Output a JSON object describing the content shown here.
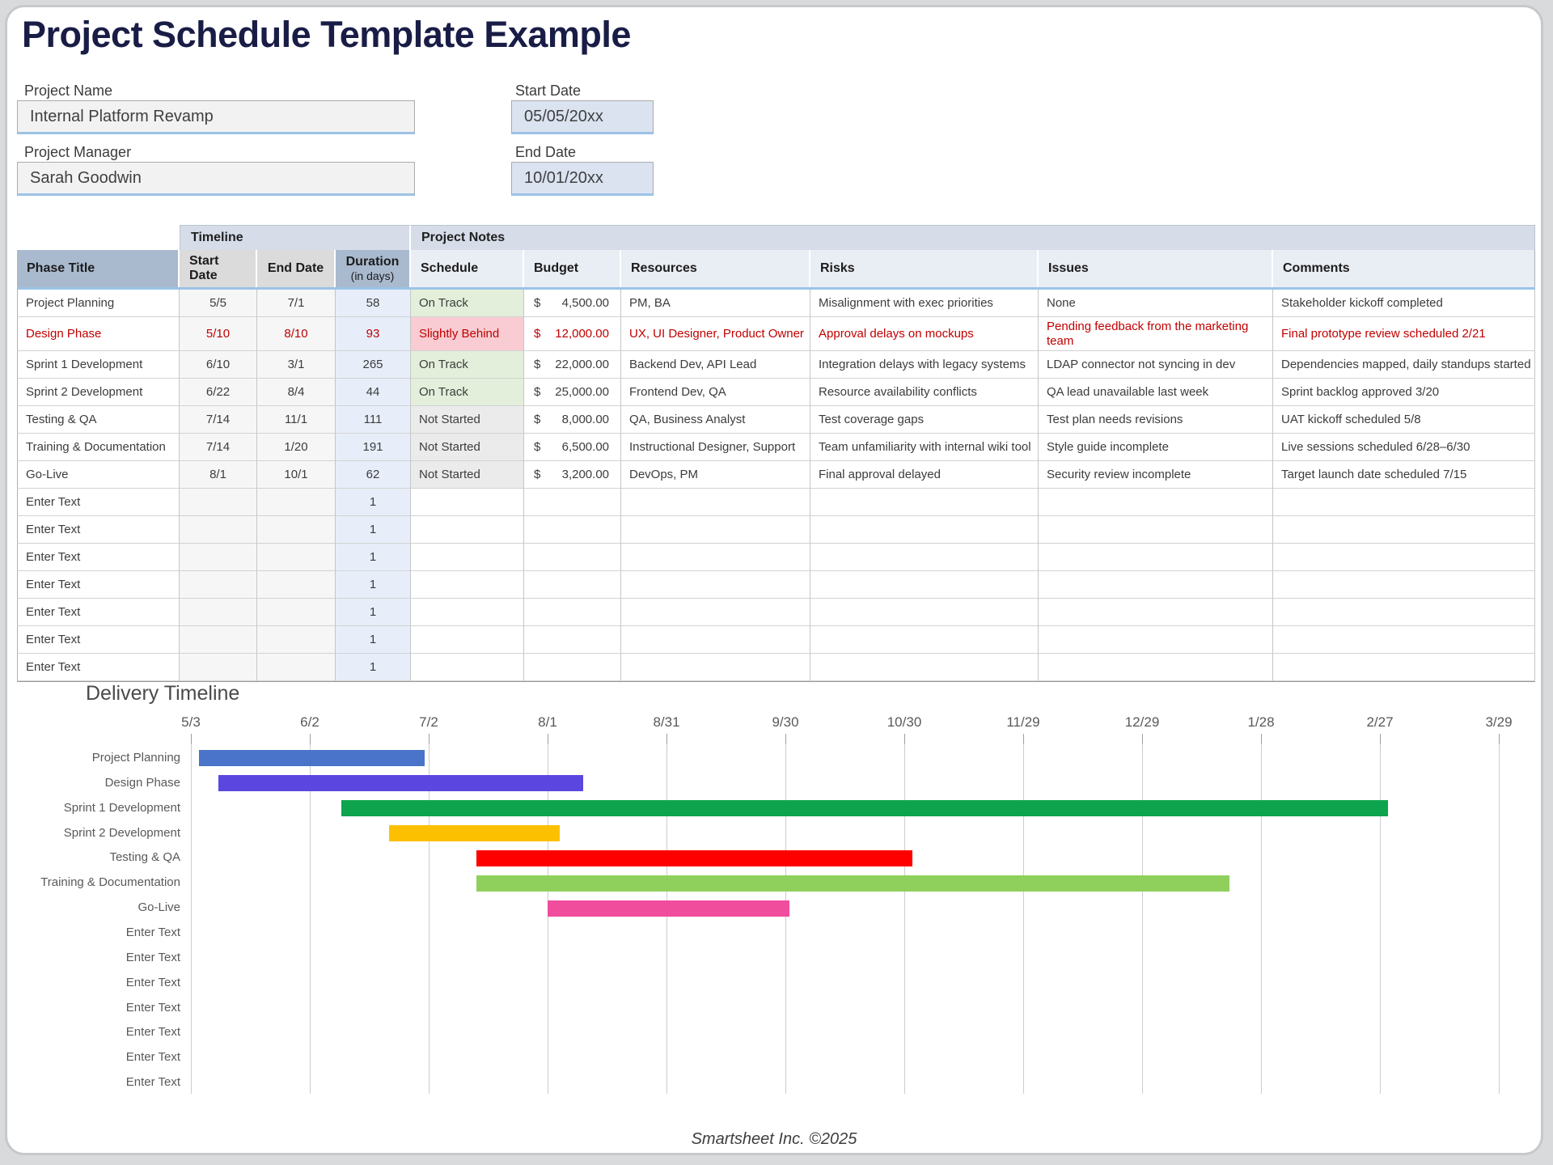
{
  "page": {
    "title": "Project Schedule Template Example",
    "footer": "Smartsheet Inc. ©2025"
  },
  "form": {
    "project_name": {
      "label": "Project Name",
      "value": "Internal Platform Revamp"
    },
    "project_manager": {
      "label": "Project Manager",
      "value": "Sarah Goodwin"
    },
    "start_date": {
      "label": "Start Date",
      "value": "05/05/20xx"
    },
    "end_date": {
      "label": "End Date",
      "value": "10/01/20xx"
    }
  },
  "table": {
    "group_headers": {
      "timeline": "Timeline",
      "project_notes": "Project Notes"
    },
    "columns": {
      "phase": "Phase Title",
      "start": "Start Date",
      "end": "End Date",
      "duration": "Duration",
      "duration_sub": "(in days)",
      "schedule": "Schedule",
      "budget": "Budget",
      "resources": "Resources",
      "risks": "Risks",
      "issues": "Issues",
      "comments": "Comments"
    },
    "currency_symbol": "$",
    "rows": [
      {
        "phase": "Project Planning",
        "start": "5/5",
        "end": "7/1",
        "duration": "58",
        "schedule": "On Track",
        "budget": "4,500.00",
        "resources": "PM, BA",
        "risks": "Misalignment with exec priorities",
        "issues": "None",
        "comments": "Stakeholder kickoff completed",
        "alert": false
      },
      {
        "phase": "Design Phase",
        "start": "5/10",
        "end": "8/10",
        "duration": "93",
        "schedule": "Slightly Behind",
        "budget": "12,000.00",
        "resources": "UX, UI Designer, Product Owner",
        "risks": "Approval delays on mockups",
        "issues": "Pending feedback from the marketing team",
        "comments": "Final prototype review scheduled 2/21",
        "alert": true
      },
      {
        "phase": "Sprint 1 Development",
        "start": "6/10",
        "end": "3/1",
        "duration": "265",
        "schedule": "On Track",
        "budget": "22,000.00",
        "resources": "Backend Dev, API Lead",
        "risks": "Integration delays with legacy systems",
        "issues": "LDAP connector not syncing in dev",
        "comments": "Dependencies mapped, daily standups started",
        "alert": false
      },
      {
        "phase": "Sprint 2 Development",
        "start": "6/22",
        "end": "8/4",
        "duration": "44",
        "schedule": "On Track",
        "budget": "25,000.00",
        "resources": "Frontend Dev, QA",
        "risks": "Resource availability conflicts",
        "issues": "QA lead unavailable last week",
        "comments": "Sprint backlog approved 3/20",
        "alert": false
      },
      {
        "phase": "Testing & QA",
        "start": "7/14",
        "end": "11/1",
        "duration": "111",
        "schedule": "Not Started",
        "budget": "8,000.00",
        "resources": "QA, Business Analyst",
        "risks": "Test coverage gaps",
        "issues": "Test plan needs revisions",
        "comments": "UAT kickoff scheduled 5/8",
        "alert": false
      },
      {
        "phase": "Training & Documentation",
        "start": "7/14",
        "end": "1/20",
        "duration": "191",
        "schedule": "Not Started",
        "budget": "6,500.00",
        "resources": "Instructional Designer, Support",
        "risks": "Team unfamiliarity with internal wiki tool",
        "issues": "Style guide incomplete",
        "comments": "Live sessions scheduled 6/28–6/30",
        "alert": false
      },
      {
        "phase": "Go-Live",
        "start": "8/1",
        "end": "10/1",
        "duration": "62",
        "schedule": "Not Started",
        "budget": "3,200.00",
        "resources": "DevOps, PM",
        "risks": "Final approval delayed",
        "issues": "Security review incomplete",
        "comments": "Target launch date scheduled 7/15",
        "alert": false
      },
      {
        "phase": "Enter Text",
        "start": "",
        "end": "",
        "duration": "1",
        "schedule": "",
        "budget": "",
        "resources": "",
        "risks": "",
        "issues": "",
        "comments": "",
        "alert": false
      },
      {
        "phase": "Enter Text",
        "start": "",
        "end": "",
        "duration": "1",
        "schedule": "",
        "budget": "",
        "resources": "",
        "risks": "",
        "issues": "",
        "comments": "",
        "alert": false
      },
      {
        "phase": "Enter Text",
        "start": "",
        "end": "",
        "duration": "1",
        "schedule": "",
        "budget": "",
        "resources": "",
        "risks": "",
        "issues": "",
        "comments": "",
        "alert": false
      },
      {
        "phase": "Enter Text",
        "start": "",
        "end": "",
        "duration": "1",
        "schedule": "",
        "budget": "",
        "resources": "",
        "risks": "",
        "issues": "",
        "comments": "",
        "alert": false
      },
      {
        "phase": "Enter Text",
        "start": "",
        "end": "",
        "duration": "1",
        "schedule": "",
        "budget": "",
        "resources": "",
        "risks": "",
        "issues": "",
        "comments": "",
        "alert": false
      },
      {
        "phase": "Enter Text",
        "start": "",
        "end": "",
        "duration": "1",
        "schedule": "",
        "budget": "",
        "resources": "",
        "risks": "",
        "issues": "",
        "comments": "",
        "alert": false
      },
      {
        "phase": "Enter Text",
        "start": "",
        "end": "",
        "duration": "1",
        "schedule": "",
        "budget": "",
        "resources": "",
        "risks": "",
        "issues": "",
        "comments": "",
        "alert": false
      }
    ]
  },
  "colors": {
    "alert_text": "#c00000",
    "header_rule_blue": "#9cc3e6",
    "status_fill": {
      "On Track": "#e3efda",
      "Slightly Behind": "#f8ccd2",
      "Not Started": "#ebebeb"
    }
  },
  "chart_data": {
    "type": "gantt",
    "title": "Delivery Timeline",
    "x_tick_labels": [
      "5/3",
      "6/2",
      "7/2",
      "8/1",
      "8/31",
      "9/30",
      "10/30",
      "11/29",
      "12/29",
      "1/28",
      "2/27",
      "3/29"
    ],
    "tick_interval_days": 30,
    "bars": [
      {
        "label": "Project Planning",
        "start": "5/5",
        "end": "7/1",
        "duration_days": 58,
        "color": "#4a74c9"
      },
      {
        "label": "Design Phase",
        "start": "5/10",
        "end": "8/10",
        "duration_days": 93,
        "color": "#5b46df"
      },
      {
        "label": "Sprint 1 Development",
        "start": "6/10",
        "end": "3/1",
        "duration_days": 265,
        "color": "#0ea44e"
      },
      {
        "label": "Sprint 2 Development",
        "start": "6/22",
        "end": "8/4",
        "duration_days": 44,
        "color": "#fdc000"
      },
      {
        "label": "Testing & QA",
        "start": "7/14",
        "end": "11/1",
        "duration_days": 111,
        "color": "#fe0000"
      },
      {
        "label": "Training & Documentation",
        "start": "7/14",
        "end": "1/20",
        "duration_days": 191,
        "color": "#8fd05c"
      },
      {
        "label": "Go-Live",
        "start": "8/1",
        "end": "10/1",
        "duration_days": 62,
        "color": "#f04d9d"
      },
      {
        "label": "Enter Text",
        "start": null,
        "end": null,
        "duration_days": 1,
        "color": null
      },
      {
        "label": "Enter Text",
        "start": null,
        "end": null,
        "duration_days": 1,
        "color": null
      },
      {
        "label": "Enter Text",
        "start": null,
        "end": null,
        "duration_days": 1,
        "color": null
      },
      {
        "label": "Enter Text",
        "start": null,
        "end": null,
        "duration_days": 1,
        "color": null
      },
      {
        "label": "Enter Text",
        "start": null,
        "end": null,
        "duration_days": 1,
        "color": null
      },
      {
        "label": "Enter Text",
        "start": null,
        "end": null,
        "duration_days": 1,
        "color": null
      },
      {
        "label": "Enter Text",
        "start": null,
        "end": null,
        "duration_days": 1,
        "color": null
      }
    ]
  }
}
